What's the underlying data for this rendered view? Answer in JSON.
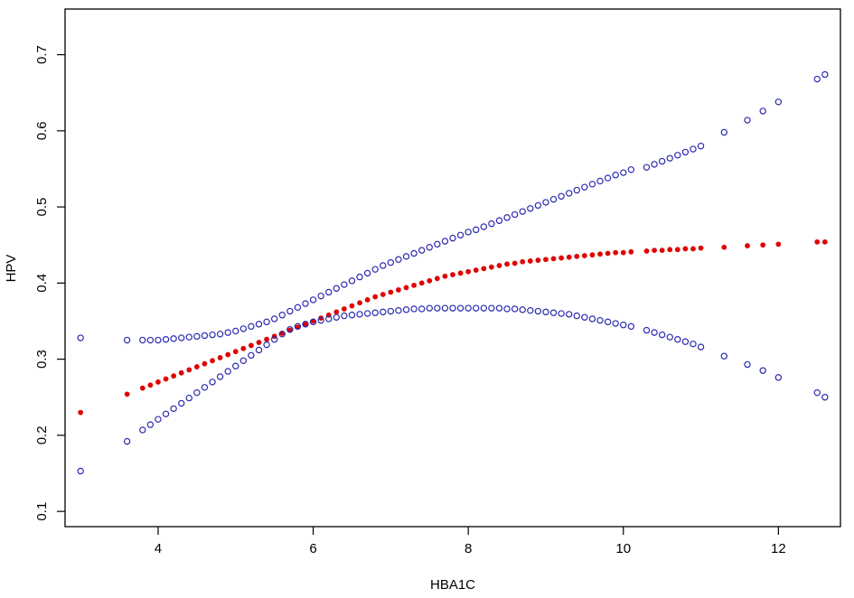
{
  "chart_data": {
    "type": "scatter",
    "title": "",
    "xlabel": "HBA1C",
    "ylabel": "HPV",
    "xlim": [
      2.8,
      12.8
    ],
    "ylim": [
      0.08,
      0.76
    ],
    "x_ticks": [
      4,
      6,
      8,
      10,
      12
    ],
    "x_tick_labels": [
      "4",
      "6",
      "8",
      "10",
      "12"
    ],
    "y_ticks": [
      0.1,
      0.2,
      0.3,
      0.4,
      0.5,
      0.6,
      0.7
    ],
    "y_tick_labels": [
      "0.1",
      "0.2",
      "0.3",
      "0.4",
      "0.5",
      "0.6",
      "0.7"
    ],
    "grid": false,
    "legend": "none",
    "x": [
      3.0,
      3.6,
      3.8,
      3.9,
      4.0,
      4.1,
      4.2,
      4.3,
      4.4,
      4.5,
      4.6,
      4.7,
      4.8,
      4.9,
      5.0,
      5.1,
      5.2,
      5.3,
      5.4,
      5.5,
      5.6,
      5.7,
      5.8,
      5.9,
      6.0,
      6.1,
      6.2,
      6.3,
      6.4,
      6.5,
      6.6,
      6.7,
      6.8,
      6.9,
      7.0,
      7.1,
      7.2,
      7.3,
      7.4,
      7.5,
      7.6,
      7.7,
      7.8,
      7.9,
      8.0,
      8.1,
      8.2,
      8.3,
      8.4,
      8.5,
      8.6,
      8.7,
      8.8,
      8.9,
      9.0,
      9.1,
      9.2,
      9.3,
      9.4,
      9.5,
      9.6,
      9.7,
      9.8,
      9.9,
      10.0,
      10.1,
      10.3,
      10.4,
      10.5,
      10.6,
      10.7,
      10.8,
      10.9,
      11.0,
      11.3,
      11.6,
      11.8,
      12.0,
      12.5,
      12.6
    ],
    "series": [
      {
        "role": "fit",
        "color": "#e00000",
        "marker": "filled-circle",
        "values": [
          0.23,
          0.254,
          0.262,
          0.266,
          0.27,
          0.274,
          0.278,
          0.282,
          0.286,
          0.29,
          0.294,
          0.298,
          0.302,
          0.306,
          0.31,
          0.314,
          0.318,
          0.322,
          0.326,
          0.33,
          0.334,
          0.338,
          0.342,
          0.346,
          0.35,
          0.354,
          0.358,
          0.362,
          0.366,
          0.37,
          0.374,
          0.378,
          0.382,
          0.385,
          0.388,
          0.391,
          0.394,
          0.397,
          0.4,
          0.403,
          0.406,
          0.409,
          0.411,
          0.413,
          0.415,
          0.417,
          0.419,
          0.421,
          0.423,
          0.425,
          0.426,
          0.428,
          0.429,
          0.43,
          0.431,
          0.432,
          0.433,
          0.434,
          0.435,
          0.436,
          0.437,
          0.438,
          0.439,
          0.44,
          0.44,
          0.441,
          0.442,
          0.443,
          0.443,
          0.444,
          0.444,
          0.445,
          0.445,
          0.446,
          0.447,
          0.449,
          0.45,
          0.451,
          0.454,
          0.454
        ]
      },
      {
        "role": "upper-ci",
        "color": "#2a2ab0",
        "marker": "open-circle",
        "values": [
          0.328,
          0.325,
          0.325,
          0.325,
          0.325,
          0.326,
          0.327,
          0.328,
          0.329,
          0.33,
          0.331,
          0.332,
          0.333,
          0.335,
          0.337,
          0.34,
          0.343,
          0.346,
          0.349,
          0.353,
          0.358,
          0.363,
          0.368,
          0.373,
          0.378,
          0.383,
          0.388,
          0.393,
          0.398,
          0.403,
          0.408,
          0.413,
          0.418,
          0.423,
          0.427,
          0.431,
          0.435,
          0.439,
          0.443,
          0.447,
          0.451,
          0.455,
          0.459,
          0.463,
          0.467,
          0.47,
          0.474,
          0.478,
          0.482,
          0.486,
          0.49,
          0.494,
          0.498,
          0.502,
          0.506,
          0.51,
          0.514,
          0.518,
          0.522,
          0.526,
          0.53,
          0.534,
          0.538,
          0.542,
          0.545,
          0.549,
          0.552,
          0.556,
          0.56,
          0.564,
          0.568,
          0.572,
          0.576,
          0.58,
          0.598,
          0.614,
          0.626,
          0.638,
          0.668,
          0.674
        ]
      },
      {
        "role": "lower-ci",
        "color": "#2a2ab0",
        "marker": "open-circle",
        "values": [
          0.153,
          0.192,
          0.207,
          0.214,
          0.221,
          0.228,
          0.235,
          0.242,
          0.249,
          0.256,
          0.263,
          0.27,
          0.277,
          0.284,
          0.291,
          0.298,
          0.305,
          0.312,
          0.319,
          0.326,
          0.333,
          0.339,
          0.343,
          0.346,
          0.349,
          0.351,
          0.353,
          0.355,
          0.357,
          0.358,
          0.359,
          0.36,
          0.361,
          0.362,
          0.363,
          0.364,
          0.365,
          0.366,
          0.366,
          0.367,
          0.367,
          0.367,
          0.367,
          0.367,
          0.367,
          0.367,
          0.367,
          0.367,
          0.367,
          0.366,
          0.366,
          0.365,
          0.364,
          0.363,
          0.362,
          0.361,
          0.36,
          0.359,
          0.357,
          0.355,
          0.353,
          0.351,
          0.349,
          0.347,
          0.345,
          0.343,
          0.338,
          0.335,
          0.332,
          0.329,
          0.326,
          0.323,
          0.32,
          0.316,
          0.304,
          0.293,
          0.285,
          0.276,
          0.256,
          0.25
        ]
      }
    ]
  }
}
